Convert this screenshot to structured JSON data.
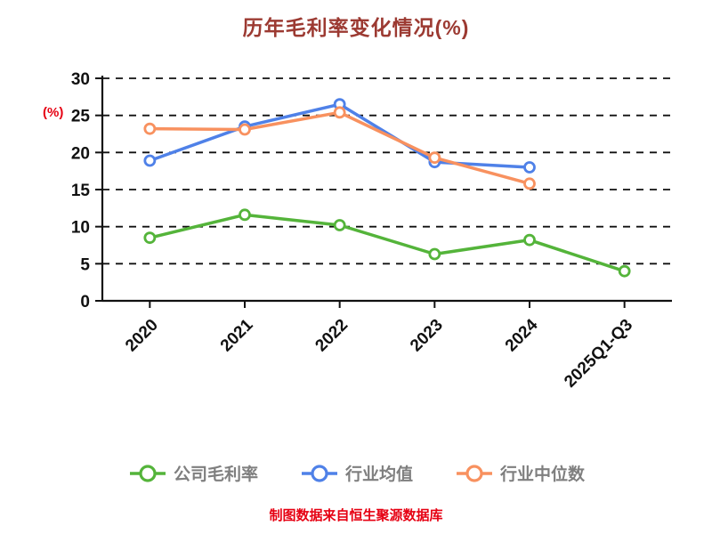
{
  "title": "历年毛利率变化情况(%)",
  "footer": "制图数据来自恒生聚源数据库",
  "colors": {
    "title": "#9c3a32",
    "accent_red": "#e60012",
    "axis": "#111111",
    "legend_text": "#7f7f7f",
    "series_company": "#54b43a",
    "series_industry_mean": "#4f81e8",
    "series_industry_median": "#f8915f"
  },
  "chart_data": {
    "type": "line",
    "title": "历年毛利率变化情况(%)",
    "xlabel": "",
    "ylabel": "(%)",
    "ylim": [
      0,
      30
    ],
    "yticks": [
      0,
      5,
      10,
      15,
      20,
      25,
      30
    ],
    "grid": "horizontal-dashed",
    "legend_position": "bottom",
    "categories": [
      "2020",
      "2021",
      "2022",
      "2023",
      "2024",
      "2025Q1-Q3"
    ],
    "series": [
      {
        "name": "公司毛利率",
        "color": "#54b43a",
        "values": [
          8.5,
          11.6,
          10.2,
          6.3,
          8.2,
          4.0
        ]
      },
      {
        "name": "行业均值",
        "color": "#4f81e8",
        "values": [
          18.9,
          23.5,
          26.5,
          18.7,
          18.0,
          null
        ]
      },
      {
        "name": "行业中位数",
        "color": "#f8915f",
        "values": [
          23.2,
          23.1,
          25.4,
          19.3,
          15.8,
          null
        ]
      }
    ]
  }
}
